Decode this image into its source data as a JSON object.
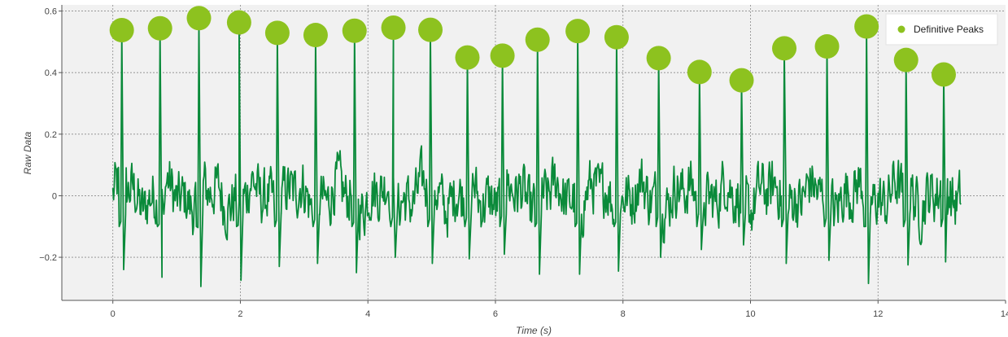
{
  "chart_data": {
    "type": "line",
    "xlabel": "Time (s)",
    "ylabel": "Raw Data",
    "xlim": [
      -0.8,
      14
    ],
    "ylim": [
      -0.34,
      0.62
    ],
    "x_ticks": [
      0,
      2,
      4,
      6,
      8,
      10,
      12,
      14
    ],
    "y_ticks": [
      -0.2,
      0,
      0.2,
      0.4,
      0.6
    ],
    "x_tick_labels": [
      "0",
      "2",
      "4",
      "6",
      "8",
      "10",
      "12",
      "14"
    ],
    "y_tick_labels": [
      "−0.2",
      "0",
      "0.2",
      "0.4",
      "0.6"
    ],
    "grid": true,
    "legend_position": "top-right",
    "colors": {
      "plot_background": "#f1f1f1",
      "signal": "#0a8a3a",
      "peaks": "#8dc21f"
    },
    "series": [
      {
        "name": "Definitive Peaks",
        "type": "scatter",
        "x": [
          0.14,
          0.74,
          1.35,
          1.98,
          2.58,
          3.18,
          3.79,
          4.4,
          4.98,
          5.56,
          6.11,
          6.66,
          7.29,
          7.9,
          8.56,
          9.2,
          9.86,
          10.53,
          11.2,
          11.82,
          12.44,
          13.03
        ],
        "y": [
          0.538,
          0.544,
          0.577,
          0.563,
          0.529,
          0.522,
          0.536,
          0.546,
          0.539,
          0.449,
          0.455,
          0.507,
          0.535,
          0.515,
          0.447,
          0.402,
          0.375,
          0.479,
          0.485,
          0.55,
          0.441,
          0.394
        ]
      },
      {
        "type": "line",
        "x_range": [
          0,
          13.3
        ],
        "trough_values": [
          -0.24,
          -0.265,
          -0.295,
          -0.275,
          -0.23,
          -0.22,
          -0.25,
          -0.2,
          -0.22,
          -0.205,
          -0.19,
          -0.255,
          -0.255,
          -0.245,
          -0.2,
          -0.175,
          -0.16,
          -0.22,
          -0.21,
          -0.285,
          -0.225,
          -0.215
        ]
      }
    ]
  }
}
